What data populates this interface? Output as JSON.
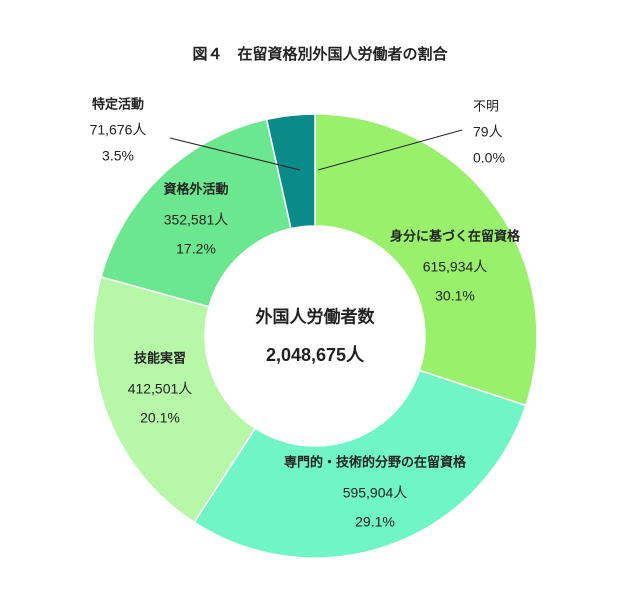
{
  "chart_data": {
    "type": "donut",
    "title": "図４　在留資格別外国人労働者の割合",
    "center_title": "外国人労働者数",
    "center_label": "2,048,675人",
    "categories": [
      "不明",
      "身分に基づく在留資格",
      "専門的・技術的分野の在留資格",
      "技能実習",
      "資格外活動",
      "特定活動"
    ],
    "values": [
      79,
      615934,
      595904,
      412501,
      352581,
      71676
    ],
    "value_labels": [
      "79人",
      "615,934人",
      "595,904人",
      "412,501人",
      "352,581人",
      "71,676人"
    ],
    "percent_labels": [
      "0.0%",
      "30.1%",
      "29.1%",
      "20.1%",
      "17.2%",
      "3.5%"
    ],
    "colors": [
      "#0b8a8a",
      "#99f06b",
      "#70f5c6",
      "#b6f7a8",
      "#6be88f",
      "#0b8a8a"
    ]
  }
}
